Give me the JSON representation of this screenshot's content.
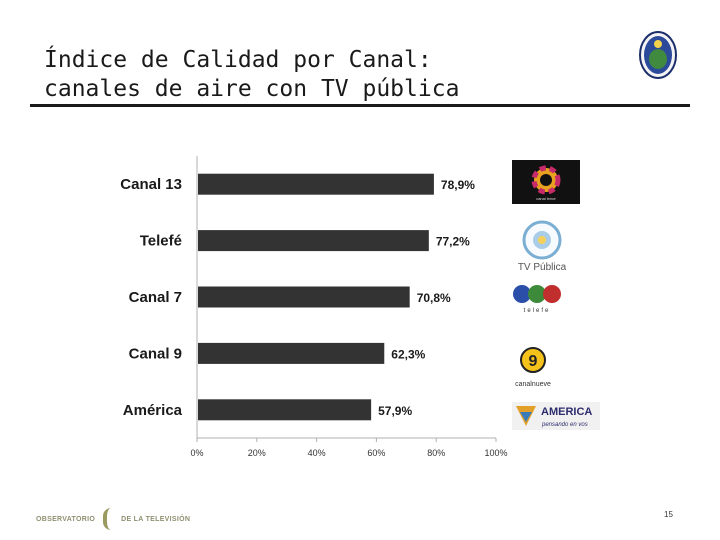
{
  "title": {
    "line1": "Índice de Calidad por Canal:",
    "line2": "canales de aire con TV pública"
  },
  "chart_data": {
    "type": "bar",
    "orientation": "horizontal",
    "categories": [
      "Canal 13",
      "Telefé",
      "Canal 7",
      "Canal 9",
      "América"
    ],
    "values": [
      78.9,
      77.2,
      70.8,
      62.3,
      57.9
    ],
    "value_labels": [
      "78,9%",
      "77,2%",
      "70,8%",
      "62,3%",
      "57,9%"
    ],
    "xlim": [
      0,
      100
    ],
    "x_ticks": [
      "0%",
      "20%",
      "40%",
      "60%",
      "80%",
      "100%"
    ],
    "bar_color": "#333333",
    "grid": false
  },
  "logos": {
    "canal13_caption": "canal trece",
    "tvpublica_caption": "TV Pública",
    "telefe_caption": "telefe",
    "canalnueve_number": "9",
    "canalnueve_caption": "canalnueve",
    "america_name": "AMERICA",
    "america_tagline": "pensando en vos"
  },
  "footer": {
    "left": "OBSERVATORIO",
    "right": "DE LA TELEVISIÓN"
  },
  "page_number": "15",
  "colors": {
    "text": "#1a1a1a",
    "bar": "#333333",
    "footer_olive": "#9a9a62"
  }
}
